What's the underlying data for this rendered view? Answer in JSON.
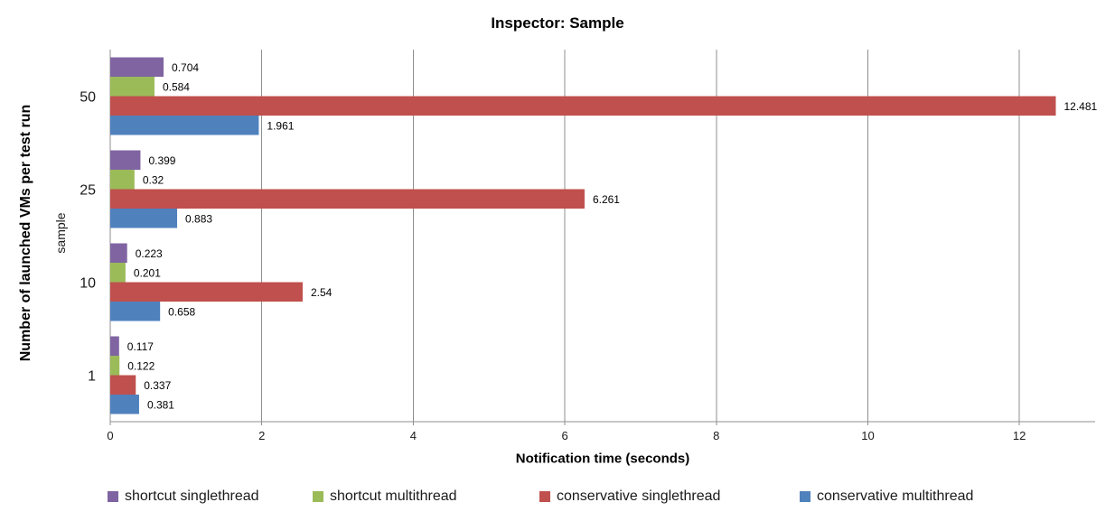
{
  "page": {
    "background_color": "#FFFFFF"
  },
  "chart_data": {
    "type": "bar",
    "orientation": "horizontal",
    "title": "Inspector: Sample",
    "xlabel": "Notification time (seconds)",
    "ylabel": "Number of launched VMs per test run",
    "ylabel_secondary": "sample",
    "categories": [
      "50",
      "25",
      "10",
      "1"
    ],
    "series": [
      {
        "name": "shortcut singlethread",
        "color": "#8064A2",
        "values": [
          0.704,
          0.399,
          0.223,
          0.117
        ]
      },
      {
        "name": "shortcut multithread",
        "color": "#9BBB59",
        "values": [
          0.584,
          0.32,
          0.201,
          0.122
        ]
      },
      {
        "name": "conservative singlethread",
        "color": "#C0504D",
        "values": [
          12.481,
          6.261,
          2.54,
          0.337
        ]
      },
      {
        "name": "conservative multithread",
        "color": "#4F81BD",
        "values": [
          1.961,
          0.883,
          0.658,
          0.381
        ]
      }
    ],
    "xlim": [
      0,
      13
    ],
    "xticks": [
      0,
      2,
      4,
      6,
      8,
      10,
      12
    ],
    "grid": true,
    "grid_color": "#8F8F8F",
    "axis_color": "#8F8F8F",
    "data_labels": true,
    "legend_position": "bottom"
  }
}
